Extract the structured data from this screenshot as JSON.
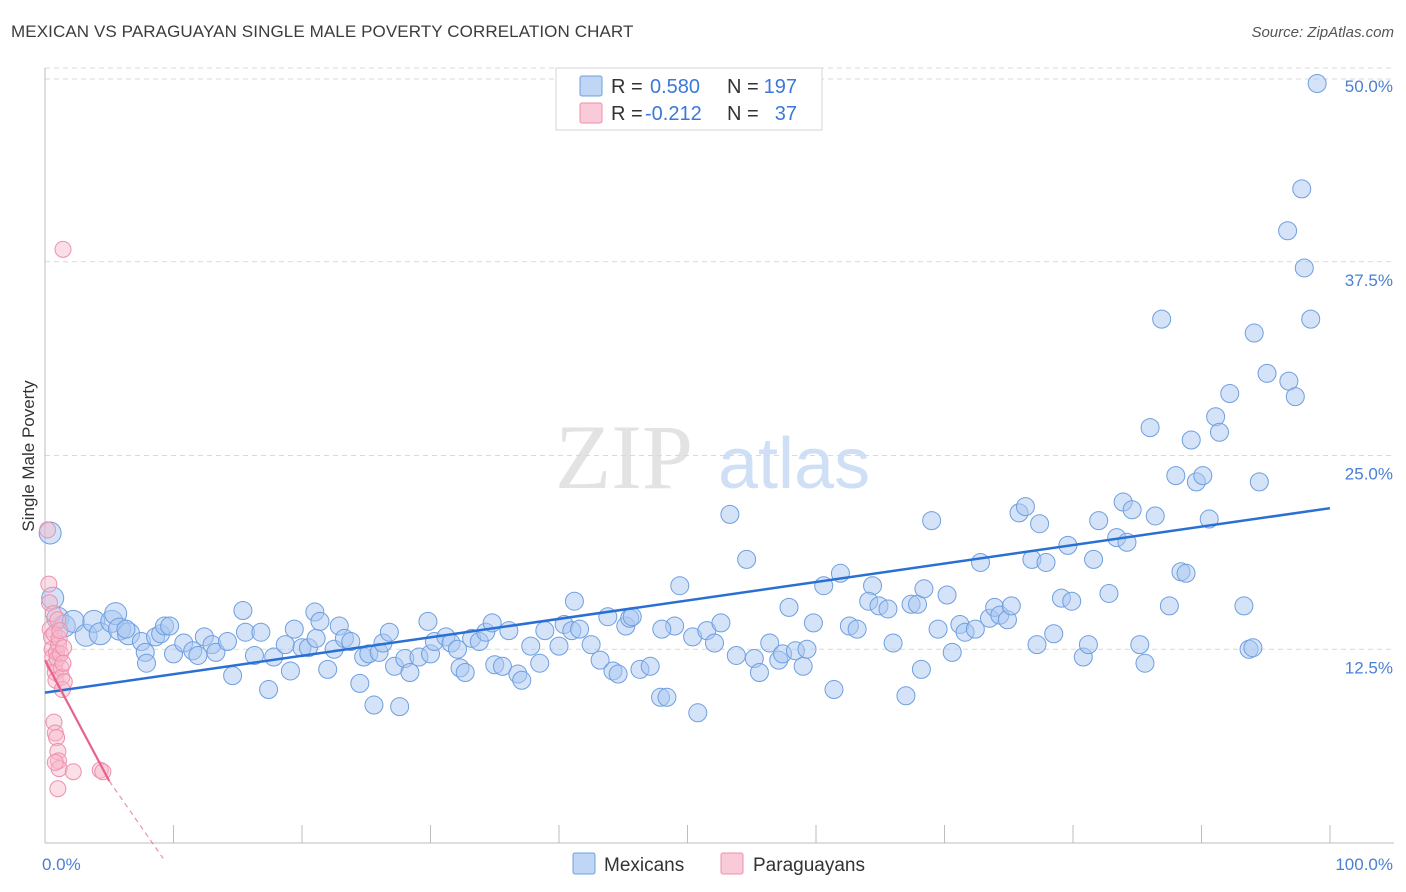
{
  "header": {
    "title": "MEXICAN VS PARAGUAYAN SINGLE MALE POVERTY CORRELATION CHART",
    "source": "Source: ZipAtlas.com"
  },
  "watermark": {
    "zip": "ZIP",
    "atlas": "atlas"
  },
  "colors": {
    "mexicans_fill": "#a9c8f2",
    "mexicans_stroke": "#6f9fe0",
    "mexicans_line": "#2a6fd4",
    "paraguayans_fill": "#f7b8ca",
    "paraguayans_stroke": "#ee8fae",
    "paraguayans_line": "#e8608d",
    "value_text": "#3b78d8",
    "grid": "#d9d9d9"
  },
  "stats": [
    {
      "r_label": "R =",
      "r_value": "0.580",
      "n_label": "N =",
      "n_value": "197"
    },
    {
      "r_label": "R =",
      "r_value": "-0.212",
      "n_label": "N =",
      "n_value": "37"
    }
  ],
  "chart_data": {
    "type": "scatter",
    "title": "MEXICAN VS PARAGUAYAN SINGLE MALE POVERTY CORRELATION CHART",
    "xlabel": "",
    "ylabel": "Single Male Poverty",
    "xlim": [
      0,
      100
    ],
    "ylim": [
      0,
      50
    ],
    "x_tick_labels": [
      "0.0%",
      "100.0%"
    ],
    "y_ticks": [
      12.5,
      25.0,
      37.5,
      50.0
    ],
    "y_tick_labels": [
      "12.5%",
      "25.0%",
      "37.5%",
      "50.0%"
    ],
    "grid": "horizontal dashed",
    "legend_position": "bottom-center",
    "series": [
      {
        "name": "Mexicans",
        "r": 0.58,
        "n": 197,
        "trend": {
          "x": [
            0,
            100
          ],
          "y": [
            9.7,
            21.6
          ]
        },
        "points": [
          [
            0.4,
            20.0
          ],
          [
            0.6,
            15.8
          ],
          [
            1.0,
            14.5
          ],
          [
            1.5,
            14.0
          ],
          [
            2.2,
            14.3
          ],
          [
            3.2,
            13.4
          ],
          [
            3.8,
            14.3
          ],
          [
            4.3,
            13.5
          ],
          [
            5.2,
            14.3
          ],
          [
            5.5,
            14.8
          ],
          [
            5.8,
            13.8
          ],
          [
            6.5,
            13.5
          ],
          [
            6.3,
            13.8
          ],
          [
            7.5,
            13.0
          ],
          [
            7.8,
            12.3
          ],
          [
            7.9,
            11.6
          ],
          [
            8.6,
            13.3
          ],
          [
            9.0,
            13.5
          ],
          [
            9.3,
            14.0
          ],
          [
            9.7,
            14.0
          ],
          [
            10.0,
            12.2
          ],
          [
            10.8,
            12.9
          ],
          [
            11.5,
            12.4
          ],
          [
            11.9,
            12.1
          ],
          [
            12.4,
            13.3
          ],
          [
            13.0,
            12.8
          ],
          [
            13.3,
            12.3
          ],
          [
            14.2,
            13.0
          ],
          [
            14.6,
            10.8
          ],
          [
            15.4,
            15.0
          ],
          [
            15.6,
            13.6
          ],
          [
            16.3,
            12.1
          ],
          [
            16.8,
            13.6
          ],
          [
            17.4,
            9.9
          ],
          [
            17.8,
            12.0
          ],
          [
            18.7,
            12.8
          ],
          [
            19.1,
            11.1
          ],
          [
            19.4,
            13.8
          ],
          [
            20.0,
            12.6
          ],
          [
            20.5,
            12.6
          ],
          [
            21.1,
            13.2
          ],
          [
            21.0,
            14.9
          ],
          [
            21.4,
            14.3
          ],
          [
            22.0,
            11.2
          ],
          [
            22.5,
            12.5
          ],
          [
            22.9,
            14.0
          ],
          [
            23.3,
            13.2
          ],
          [
            23.8,
            13.0
          ],
          [
            24.5,
            10.3
          ],
          [
            24.8,
            12.0
          ],
          [
            25.2,
            12.2
          ],
          [
            25.6,
            8.9
          ],
          [
            26.0,
            12.3
          ],
          [
            26.3,
            12.9
          ],
          [
            26.8,
            13.6
          ],
          [
            27.2,
            11.4
          ],
          [
            27.6,
            8.8
          ],
          [
            28.0,
            11.9
          ],
          [
            28.4,
            11.0
          ],
          [
            29.1,
            12.0
          ],
          [
            30.0,
            12.2
          ],
          [
            29.8,
            14.3
          ],
          [
            30.3,
            13.0
          ],
          [
            31.2,
            13.3
          ],
          [
            31.6,
            12.9
          ],
          [
            32.3,
            11.3
          ],
          [
            32.7,
            11.0
          ],
          [
            32.1,
            12.5
          ],
          [
            33.2,
            13.2
          ],
          [
            33.8,
            13.0
          ],
          [
            34.3,
            13.6
          ],
          [
            35.0,
            11.5
          ],
          [
            34.8,
            14.2
          ],
          [
            35.6,
            11.4
          ],
          [
            36.1,
            13.7
          ],
          [
            36.8,
            10.9
          ],
          [
            37.1,
            10.5
          ],
          [
            37.8,
            12.7
          ],
          [
            38.5,
            11.6
          ],
          [
            38.9,
            13.7
          ],
          [
            40.0,
            12.7
          ],
          [
            40.4,
            14.1
          ],
          [
            41.0,
            13.7
          ],
          [
            41.6,
            13.8
          ],
          [
            41.2,
            15.6
          ],
          [
            42.5,
            12.8
          ],
          [
            43.2,
            11.8
          ],
          [
            43.8,
            14.6
          ],
          [
            44.2,
            11.1
          ],
          [
            44.6,
            10.9
          ],
          [
            45.2,
            14.0
          ],
          [
            45.5,
            14.5
          ],
          [
            45.7,
            14.6
          ],
          [
            46.3,
            11.2
          ],
          [
            47.1,
            11.4
          ],
          [
            47.9,
            9.4
          ],
          [
            48.4,
            9.4
          ],
          [
            49.0,
            14.0
          ],
          [
            48.0,
            13.8
          ],
          [
            49.4,
            16.6
          ],
          [
            50.4,
            13.3
          ],
          [
            50.8,
            8.4
          ],
          [
            51.5,
            13.7
          ],
          [
            52.1,
            12.9
          ],
          [
            52.6,
            14.2
          ],
          [
            53.3,
            21.2
          ],
          [
            53.8,
            12.1
          ],
          [
            54.6,
            18.3
          ],
          [
            55.2,
            11.9
          ],
          [
            55.6,
            11.0
          ],
          [
            56.4,
            12.9
          ],
          [
            57.1,
            11.8
          ],
          [
            57.4,
            12.2
          ],
          [
            57.9,
            15.2
          ],
          [
            58.4,
            12.4
          ],
          [
            59.0,
            11.4
          ],
          [
            59.3,
            12.5
          ],
          [
            59.8,
            14.2
          ],
          [
            60.6,
            16.6
          ],
          [
            61.4,
            9.9
          ],
          [
            61.9,
            17.4
          ],
          [
            62.6,
            14.0
          ],
          [
            63.2,
            13.8
          ],
          [
            64.4,
            16.6
          ],
          [
            64.1,
            15.6
          ],
          [
            64.9,
            15.3
          ],
          [
            65.6,
            15.1
          ],
          [
            66.0,
            12.9
          ],
          [
            67.0,
            9.5
          ],
          [
            67.4,
            15.4
          ],
          [
            67.9,
            15.4
          ],
          [
            68.4,
            16.4
          ],
          [
            68.2,
            11.2
          ],
          [
            69.0,
            20.8
          ],
          [
            69.5,
            13.8
          ],
          [
            70.2,
            16.0
          ],
          [
            70.6,
            12.3
          ],
          [
            71.2,
            14.1
          ],
          [
            71.6,
            13.6
          ],
          [
            72.4,
            13.8
          ],
          [
            72.8,
            18.1
          ],
          [
            73.5,
            14.5
          ],
          [
            73.9,
            15.2
          ],
          [
            74.3,
            14.7
          ],
          [
            74.9,
            14.4
          ],
          [
            75.2,
            15.3
          ],
          [
            75.8,
            21.3
          ],
          [
            76.3,
            21.7
          ],
          [
            76.8,
            18.3
          ],
          [
            77.4,
            20.6
          ],
          [
            77.2,
            12.8
          ],
          [
            77.9,
            18.1
          ],
          [
            78.5,
            13.5
          ],
          [
            79.1,
            15.8
          ],
          [
            79.6,
            19.2
          ],
          [
            79.9,
            15.6
          ],
          [
            80.8,
            12.0
          ],
          [
            81.2,
            12.8
          ],
          [
            81.6,
            18.3
          ],
          [
            82.0,
            20.8
          ],
          [
            82.8,
            16.1
          ],
          [
            83.4,
            19.7
          ],
          [
            83.9,
            22.0
          ],
          [
            84.2,
            19.4
          ],
          [
            84.6,
            21.5
          ],
          [
            85.2,
            12.8
          ],
          [
            85.6,
            11.6
          ],
          [
            86.0,
            26.8
          ],
          [
            86.4,
            21.1
          ],
          [
            86.9,
            33.8
          ],
          [
            87.5,
            15.3
          ],
          [
            88.0,
            23.7
          ],
          [
            88.4,
            17.5
          ],
          [
            88.8,
            17.4
          ],
          [
            89.2,
            26.0
          ],
          [
            89.6,
            23.3
          ],
          [
            90.1,
            23.7
          ],
          [
            90.6,
            20.9
          ],
          [
            91.1,
            27.5
          ],
          [
            91.4,
            26.5
          ],
          [
            92.2,
            29.0
          ],
          [
            93.3,
            15.3
          ],
          [
            93.7,
            12.5
          ],
          [
            94.0,
            12.6
          ],
          [
            94.1,
            32.9
          ],
          [
            94.5,
            23.3
          ],
          [
            95.1,
            30.3
          ],
          [
            96.8,
            29.8
          ],
          [
            97.3,
            28.8
          ],
          [
            97.8,
            42.2
          ],
          [
            96.7,
            39.5
          ],
          [
            98.0,
            37.1
          ],
          [
            98.5,
            33.8
          ],
          [
            99.0,
            49.0
          ]
        ]
      },
      {
        "name": "Paraguayans",
        "r": -0.212,
        "n": 37,
        "trend": {
          "x": [
            0,
            5.0
          ],
          "y": [
            11.8,
            4.0
          ]
        },
        "trend_extension": {
          "x": [
            5.0,
            9.2
          ],
          "y": [
            4.0,
            -1.0
          ]
        },
        "points": [
          [
            0.2,
            20.2
          ],
          [
            0.3,
            16.7
          ],
          [
            0.35,
            15.5
          ],
          [
            0.4,
            13.8
          ],
          [
            0.5,
            13.3
          ],
          [
            0.55,
            12.5
          ],
          [
            0.6,
            12.0
          ],
          [
            0.65,
            14.8
          ],
          [
            0.7,
            13.5
          ],
          [
            0.75,
            11.5
          ],
          [
            0.8,
            11.0
          ],
          [
            0.85,
            10.5
          ],
          [
            0.9,
            12.3
          ],
          [
            0.95,
            11.9
          ],
          [
            1.0,
            14.4
          ],
          [
            1.05,
            12.8
          ],
          [
            1.1,
            13.2
          ],
          [
            1.15,
            13.7
          ],
          [
            1.2,
            12.2
          ],
          [
            1.25,
            11.3
          ],
          [
            1.3,
            10.7
          ],
          [
            1.35,
            9.9
          ],
          [
            1.4,
            11.6
          ],
          [
            1.45,
            12.6
          ],
          [
            1.5,
            10.4
          ],
          [
            0.7,
            7.8
          ],
          [
            0.8,
            7.1
          ],
          [
            0.9,
            6.8
          ],
          [
            1.0,
            5.9
          ],
          [
            1.05,
            5.3
          ],
          [
            1.1,
            4.8
          ],
          [
            0.8,
            5.2
          ],
          [
            1.0,
            3.5
          ],
          [
            1.4,
            38.3
          ],
          [
            2.2,
            4.6
          ],
          [
            4.3,
            4.7
          ],
          [
            4.5,
            4.6
          ]
        ]
      }
    ]
  },
  "legend": [
    {
      "label": "Mexicans"
    },
    {
      "label": "Paraguayans"
    }
  ]
}
